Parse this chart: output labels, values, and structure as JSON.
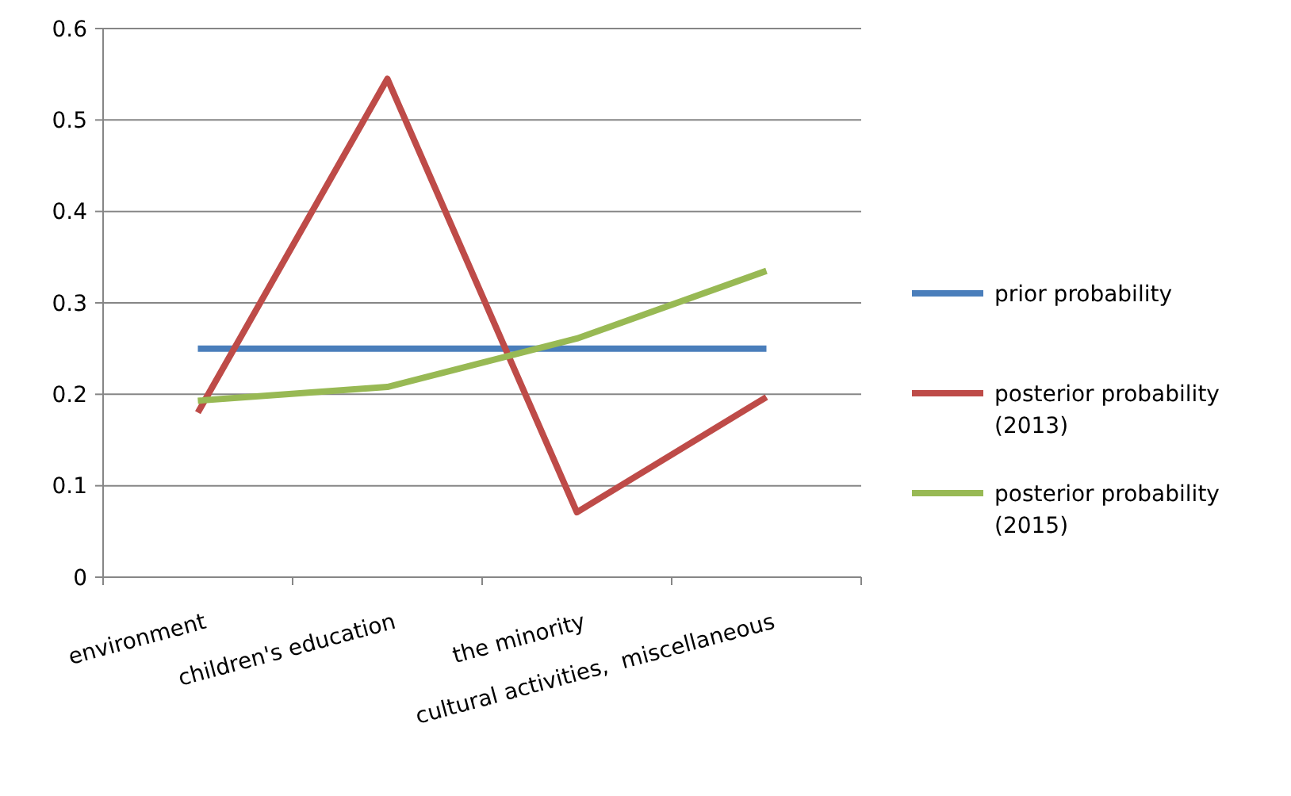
{
  "chart_data": {
    "type": "line",
    "categories": [
      "environment",
      "children's education",
      "the minority",
      "cultural activities,  miscellaneous"
    ],
    "series": [
      {
        "name": "prior probability",
        "color": "#4a7ebb",
        "values": [
          0.25,
          0.25,
          0.25,
          0.25
        ]
      },
      {
        "name": "posterior probability (2013)",
        "color": "#be4b48",
        "values": [
          0.18,
          0.545,
          0.071,
          0.197
        ]
      },
      {
        "name": "posterior probability (2015)",
        "color": "#98b954",
        "values": [
          0.193,
          0.208,
          0.261,
          0.335
        ]
      }
    ],
    "ylim": [
      0,
      0.6
    ],
    "yticks": [
      0,
      0.1,
      0.2,
      0.3,
      0.4,
      0.5,
      0.6
    ],
    "grid": "y",
    "legend": "right",
    "marker": "none",
    "line_style": "solid"
  }
}
